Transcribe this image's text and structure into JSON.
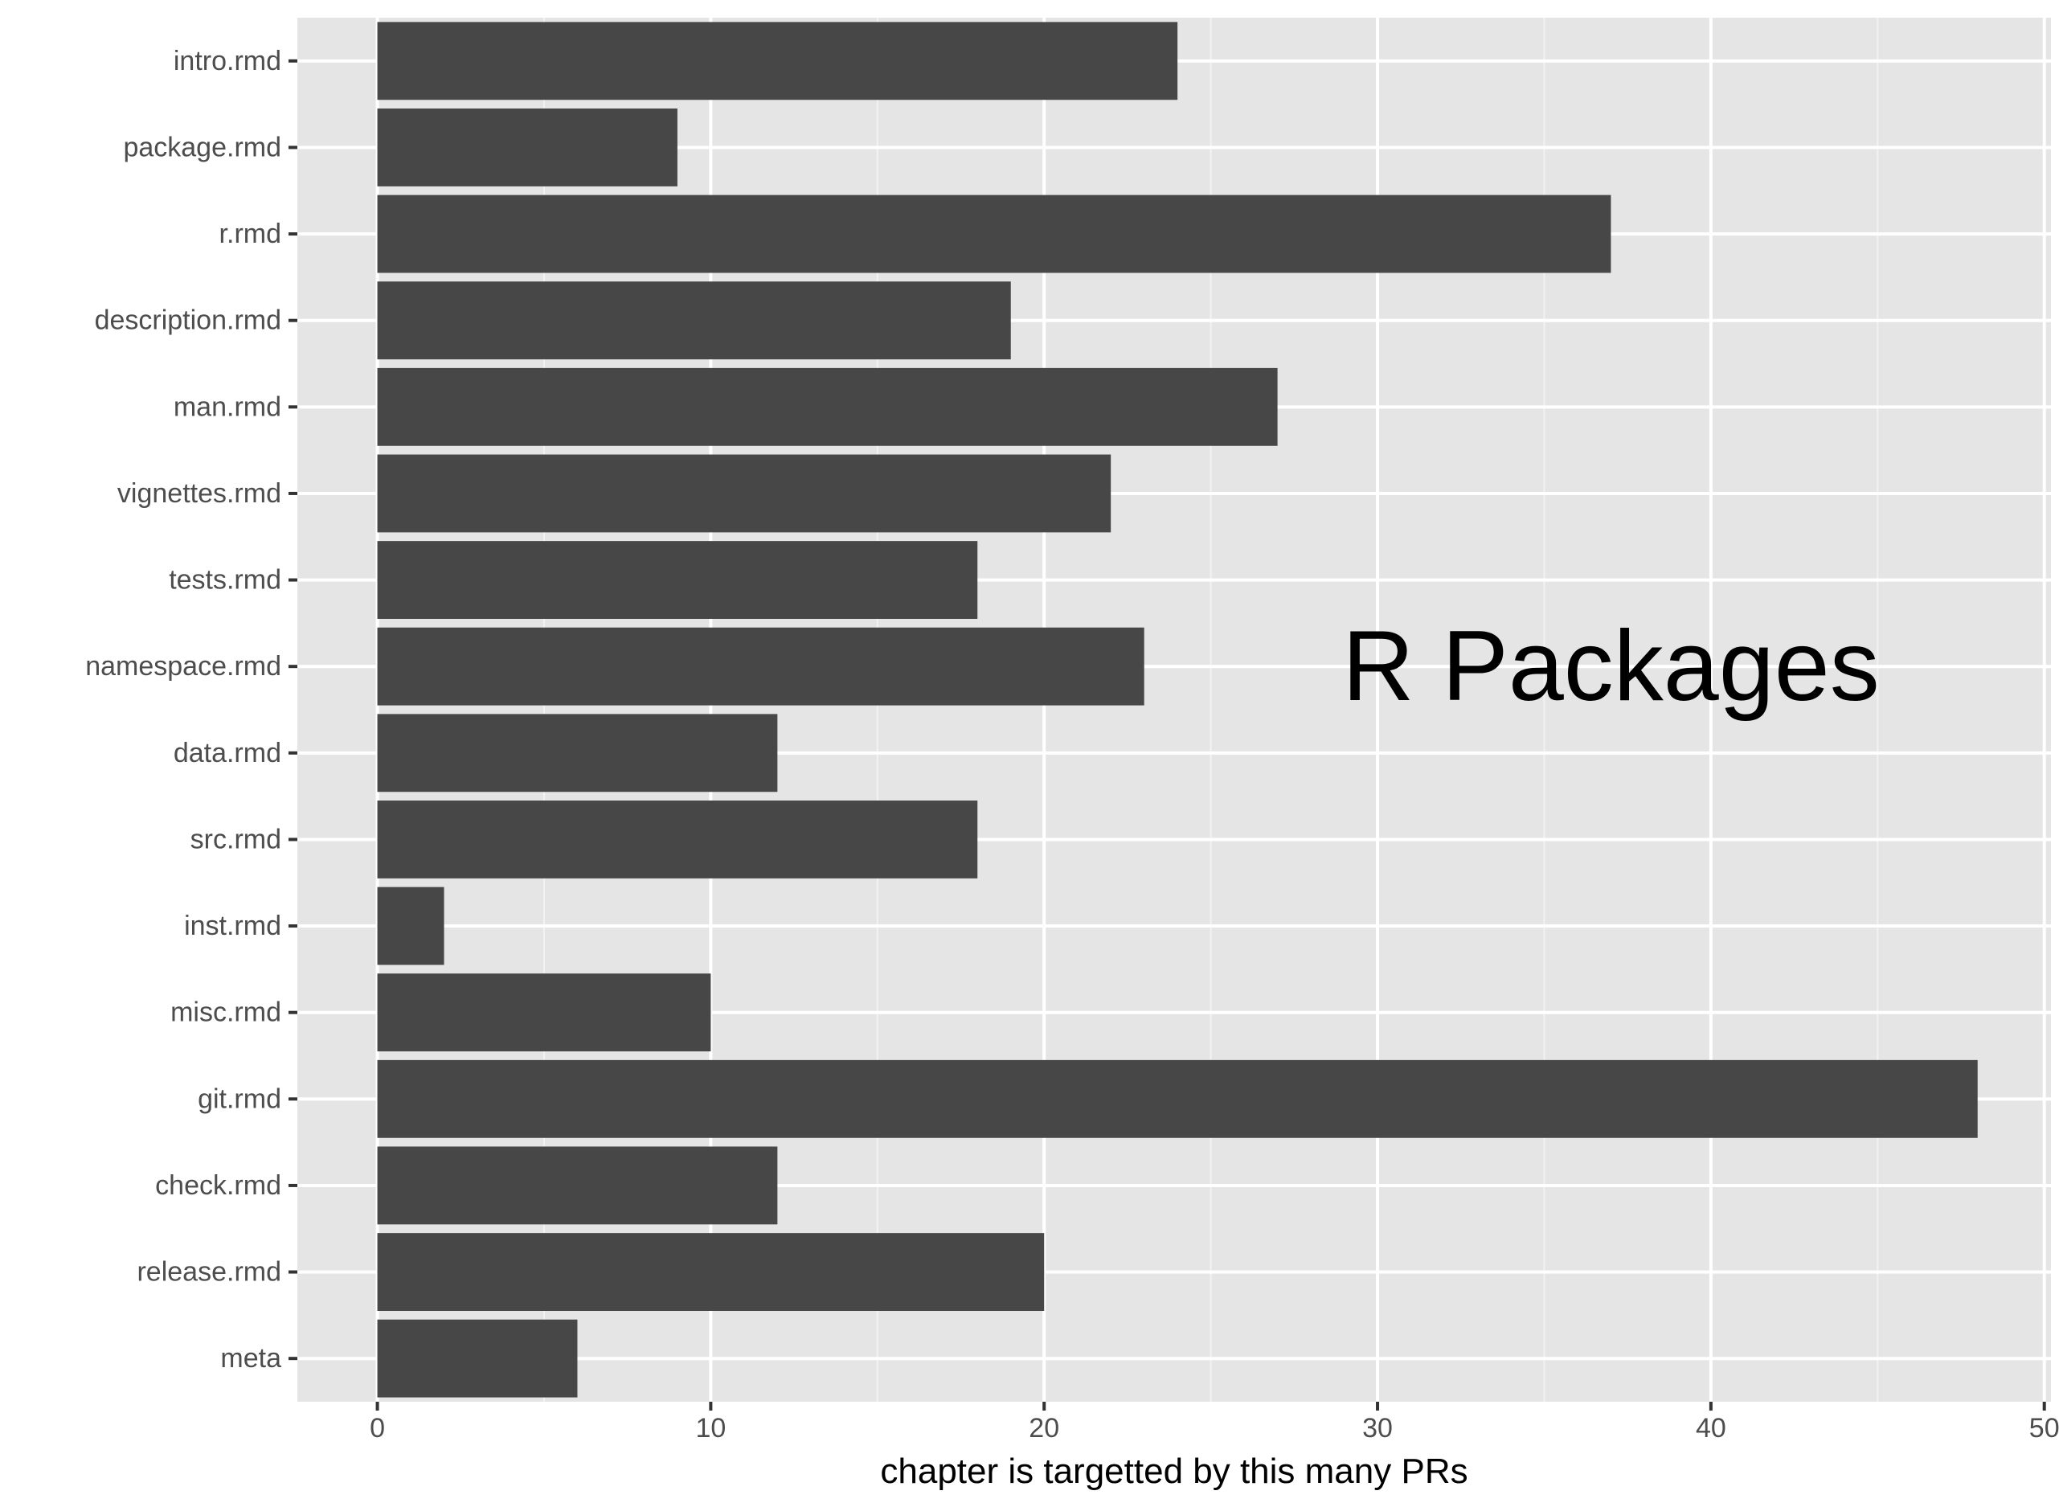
{
  "chart_data": {
    "type": "bar",
    "orientation": "horizontal",
    "categories": [
      "intro.rmd",
      "package.rmd",
      "r.rmd",
      "description.rmd",
      "man.rmd",
      "vignettes.rmd",
      "tests.rmd",
      "namespace.rmd",
      "data.rmd",
      "src.rmd",
      "inst.rmd",
      "misc.rmd",
      "git.rmd",
      "check.rmd",
      "release.rmd",
      "meta"
    ],
    "values": [
      24,
      9,
      37,
      19,
      27,
      22,
      18,
      23,
      12,
      18,
      2,
      10,
      48,
      12,
      20,
      6
    ],
    "title": "",
    "xlabel": "chapter is targetted by this many PRs",
    "ylabel": "",
    "xlim": [
      -2.4,
      50.2
    ],
    "xticks": [
      0,
      10,
      20,
      30,
      40,
      50
    ],
    "xtick_labels": [
      "0",
      "10",
      "20",
      "30",
      "40",
      "50"
    ],
    "grid": true,
    "annotations": [
      {
        "text": "R Packages",
        "x": 37,
        "category": "namespace.rmd"
      }
    ],
    "colors": {
      "bar": "#474747",
      "panel": "#e5e5e5",
      "grid_major": "#ffffff",
      "grid_minor": "#f2f2f2",
      "axis_text": "#4d4d4d",
      "tick": "#333333"
    }
  }
}
